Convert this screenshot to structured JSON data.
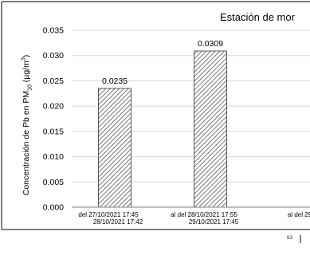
{
  "chart_data": {
    "type": "bar",
    "title": "Estación de mor",
    "ylabel_parts": {
      "prefix": "Concentración de Pb en PM",
      "sub": "10",
      "unit_open": " (µg/m",
      "sup": "3",
      "unit_close": ")"
    },
    "ylim": [
      0,
      0.035
    ],
    "yticks": [
      "0.000",
      "0.005",
      "0.010",
      "0.015",
      "0.020",
      "0.025",
      "0.030",
      "0.035"
    ],
    "grid": true,
    "legend": "none",
    "categories": [
      [
        "del 27/10/2021 17:45",
        "28/10/2021 17:42"
      ],
      [
        "al del 28/10/2021 17:55",
        "29/10/2021 17:45"
      ],
      [
        "al del 29",
        ""
      ]
    ],
    "values": [
      0.0235,
      0.0309,
      null
    ],
    "data_labels": [
      "0.0235",
      "0.0309",
      ""
    ],
    "colors": {
      "bar_fill": "#ffffff",
      "bar_hatch": "#555555",
      "grid": "#d9d9d9",
      "axis": "#808080",
      "frame": "#000000"
    }
  },
  "page_mark": "83"
}
